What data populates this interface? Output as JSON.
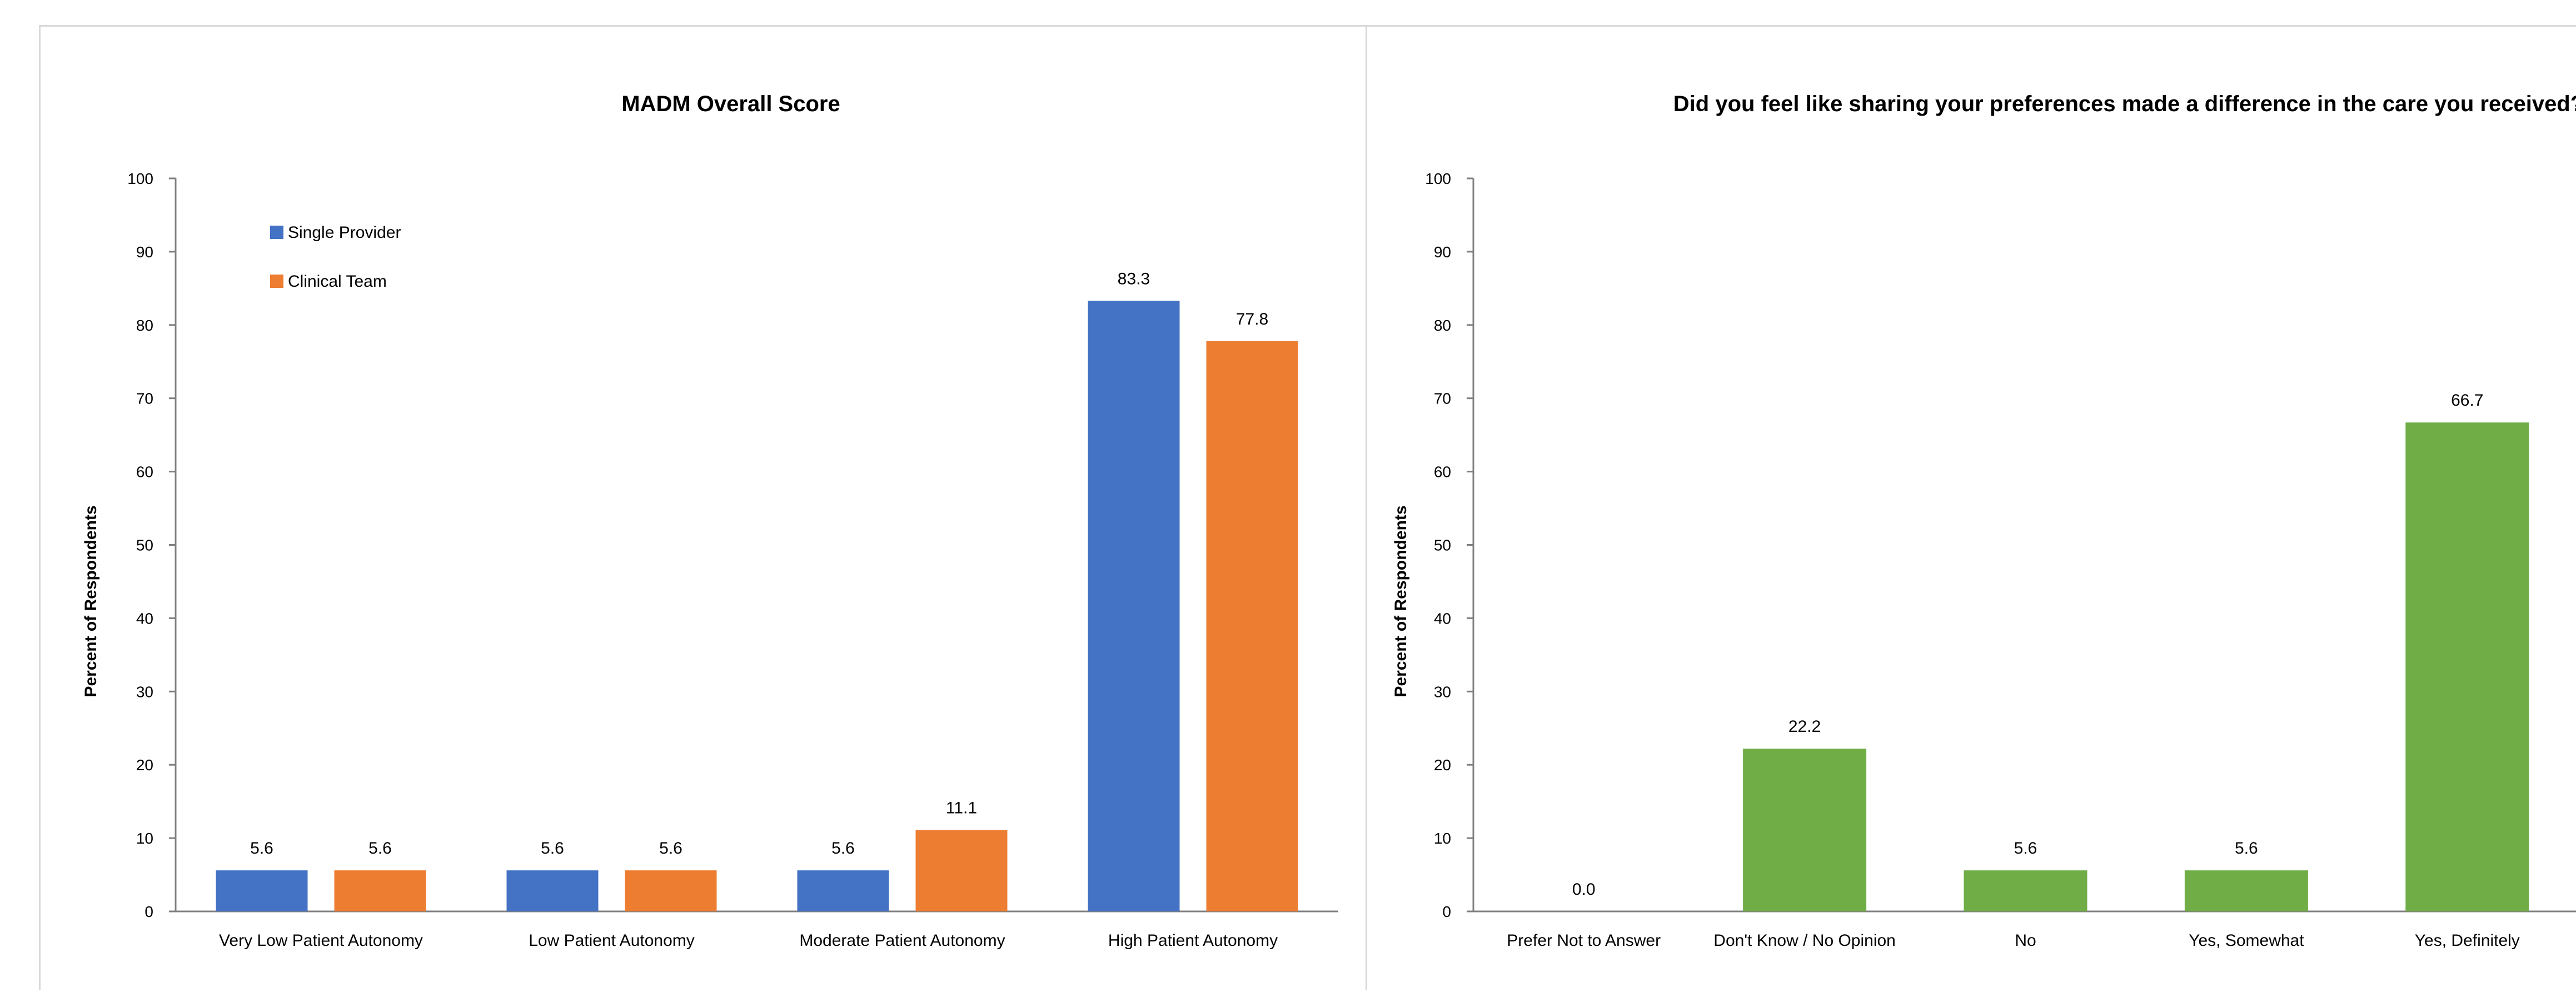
{
  "chart_data": [
    {
      "type": "bar",
      "title": "MADM Overall Score",
      "xlabel": "",
      "ylabel": "Percent of Respondents",
      "ylim": [
        0,
        100
      ],
      "yticks": [
        "0",
        "10",
        "20",
        "30",
        "40",
        "50",
        "60",
        "70",
        "80",
        "90",
        "100"
      ],
      "grid": false,
      "legend_position": "top-left",
      "categories": [
        "Very Low Patient Autonomy",
        "Low Patient Autonomy",
        "Moderate Patient Autonomy",
        "High Patient Autonomy"
      ],
      "series": [
        {
          "name": "Single Provider",
          "color": "#4472c4",
          "values": [
            5.6,
            5.6,
            5.6,
            83.3
          ],
          "labels": [
            "5.6",
            "5.6",
            "5.6",
            "83.3"
          ]
        },
        {
          "name": "Clinical Team",
          "color": "#ed7d31",
          "values": [
            5.6,
            5.6,
            11.1,
            77.8
          ],
          "labels": [
            "5.6",
            "5.6",
            "11.1",
            "77.8"
          ]
        }
      ]
    },
    {
      "type": "bar",
      "title": "Did you feel like sharing your preferences made a difference in the care you received?",
      "xlabel": "",
      "ylabel": "Percent of Respondents",
      "ylim": [
        0,
        100
      ],
      "yticks": [
        "0",
        "10",
        "20",
        "30",
        "40",
        "50",
        "60",
        "70",
        "80",
        "90",
        "100"
      ],
      "grid": false,
      "legend_position": "none",
      "categories": [
        "Prefer Not to Answer",
        "Don't Know / No Opinion",
        "No",
        "Yes, Somewhat",
        "Yes, Definitely"
      ],
      "series": [
        {
          "color": "#70ad47",
          "values": [
            0.0,
            22.2,
            5.6,
            5.6,
            66.7
          ],
          "labels": [
            "0.0",
            "22.2",
            "5.6",
            "5.6",
            "66.7"
          ]
        }
      ]
    }
  ]
}
